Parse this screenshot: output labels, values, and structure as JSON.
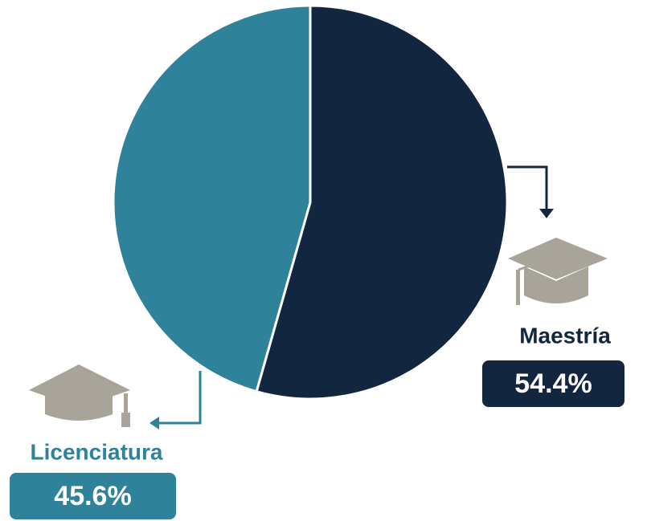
{
  "chart_data": {
    "type": "pie",
    "categories": [
      "Maestría",
      "Licenciatura"
    ],
    "values": [
      54.4,
      45.6
    ],
    "value_labels": [
      "54.4%",
      "45.6%"
    ],
    "colors": [
      "#13263f",
      "#2e8299"
    ]
  }
}
